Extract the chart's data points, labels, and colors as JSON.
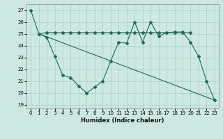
{
  "xlabel": "Humidex (Indice chaleur)",
  "background_color": "#cce8e0",
  "grid_color": "#aad4cc",
  "line_color": "#1a6b5a",
  "xlim": [
    -0.5,
    23.5
  ],
  "ylim": [
    18.7,
    27.5
  ],
  "yticks": [
    19,
    20,
    21,
    22,
    23,
    24,
    25,
    26,
    27
  ],
  "xticks": [
    0,
    1,
    2,
    3,
    4,
    5,
    6,
    7,
    8,
    9,
    10,
    11,
    12,
    13,
    14,
    15,
    16,
    17,
    18,
    19,
    20,
    21,
    22,
    23
  ],
  "line1_x": [
    0,
    1,
    2,
    3,
    4,
    5,
    6,
    7,
    8,
    9,
    10,
    11,
    12,
    13,
    14,
    15,
    16,
    17,
    18,
    19,
    20,
    21,
    22,
    23
  ],
  "line1_y": [
    27.0,
    25.0,
    24.7,
    23.1,
    21.5,
    21.3,
    20.6,
    20.0,
    20.5,
    21.0,
    22.7,
    24.3,
    24.2,
    26.0,
    24.3,
    26.0,
    24.8,
    25.1,
    25.15,
    25.15,
    24.3,
    23.1,
    21.0,
    19.4
  ],
  "line2_x": [
    1,
    2,
    3,
    4,
    5,
    6,
    7,
    8,
    9,
    10,
    11,
    12,
    13,
    14,
    15,
    16,
    17,
    18,
    19,
    20
  ],
  "line2_y": [
    25.0,
    25.1,
    25.1,
    25.1,
    25.1,
    25.1,
    25.1,
    25.1,
    25.1,
    25.1,
    25.1,
    25.1,
    25.1,
    25.1,
    25.1,
    25.1,
    25.1,
    25.1,
    25.1,
    25.1
  ],
  "line3_x": [
    1,
    23
  ],
  "line3_y": [
    25.0,
    19.4
  ]
}
